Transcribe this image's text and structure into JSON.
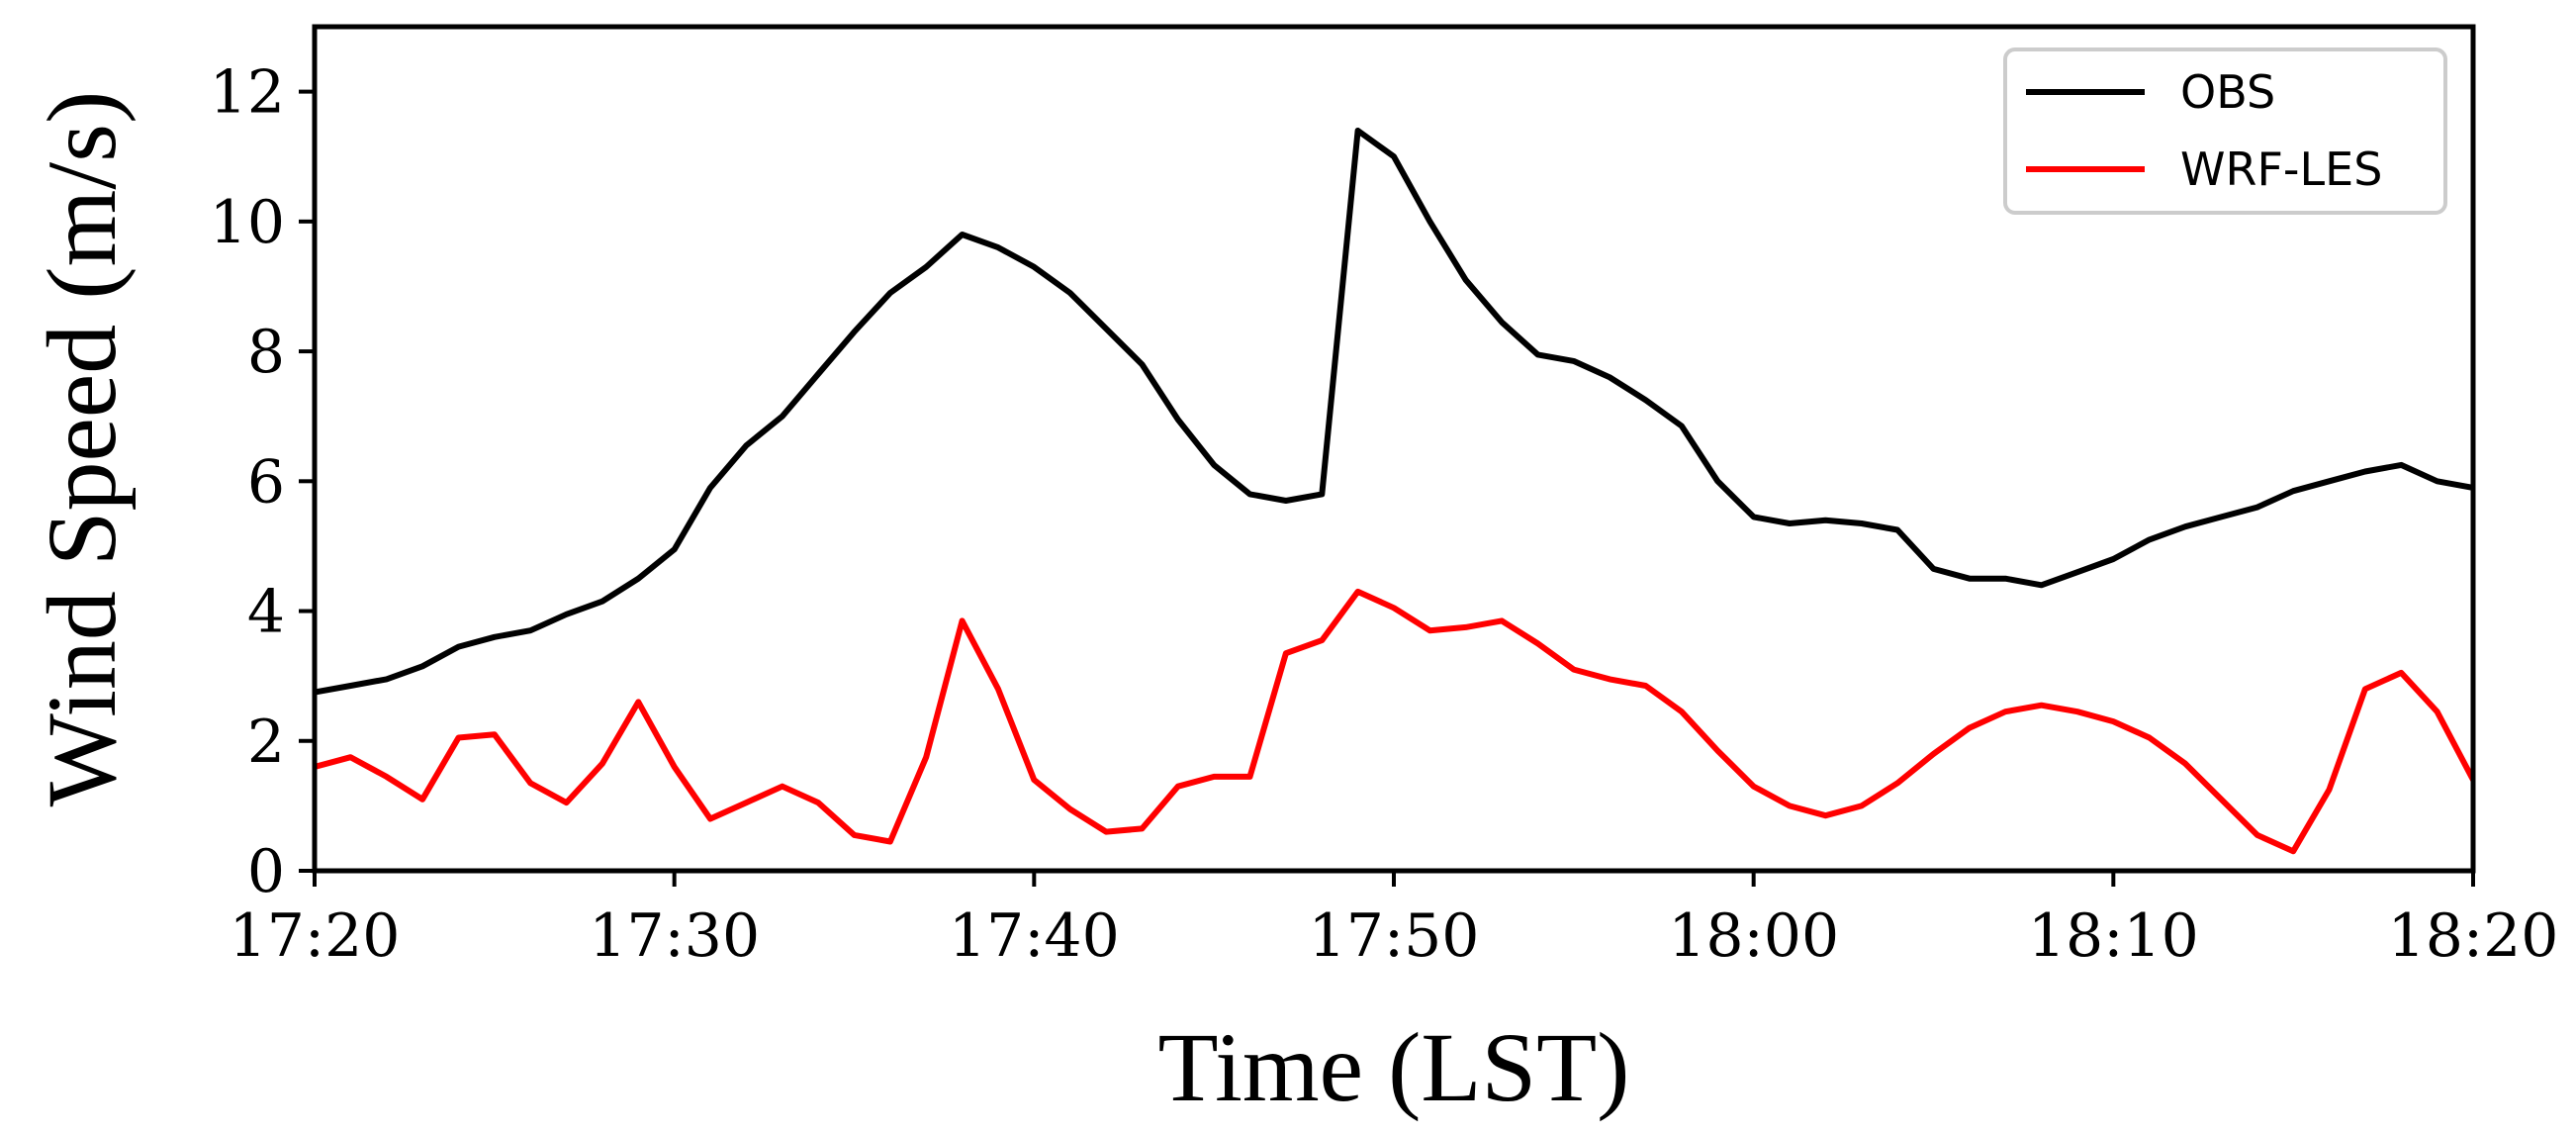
{
  "chart_data": {
    "type": "line",
    "title": "",
    "xlabel": "Time (LST)",
    "ylabel": "Wind Speed (m/s)",
    "x_unit": "minutes after 17:00 LST",
    "x_range": [
      20,
      80
    ],
    "ylim": [
      0,
      13
    ],
    "x_ticks": [
      {
        "value": 20,
        "label": "17:20"
      },
      {
        "value": 30,
        "label": "17:30"
      },
      {
        "value": 40,
        "label": "17:40"
      },
      {
        "value": 50,
        "label": "17:50"
      },
      {
        "value": 60,
        "label": "18:00"
      },
      {
        "value": 70,
        "label": "18:10"
      },
      {
        "value": 80,
        "label": "18:20"
      }
    ],
    "y_ticks": [
      0,
      2,
      4,
      6,
      8,
      10,
      12
    ],
    "grid": false,
    "legend_position": "top-right",
    "x": [
      20,
      21,
      22,
      23,
      24,
      25,
      26,
      27,
      28,
      29,
      30,
      31,
      32,
      33,
      34,
      35,
      36,
      37,
      38,
      39,
      40,
      41,
      42,
      43,
      44,
      45,
      46,
      47,
      48,
      49,
      50,
      51,
      52,
      53,
      54,
      55,
      56,
      57,
      58,
      59,
      60,
      61,
      62,
      63,
      64,
      65,
      66,
      67,
      68,
      69,
      70,
      71,
      72,
      73,
      74,
      75,
      76,
      77,
      78,
      79,
      80
    ],
    "series": [
      {
        "name": "OBS",
        "color": "#000000",
        "values": [
          2.75,
          2.85,
          2.95,
          3.15,
          3.45,
          3.6,
          3.7,
          3.95,
          4.15,
          4.5,
          4.95,
          5.9,
          6.55,
          7.0,
          7.65,
          8.3,
          8.9,
          9.3,
          9.8,
          9.6,
          9.3,
          8.9,
          8.35,
          7.8,
          6.95,
          6.25,
          5.8,
          5.7,
          5.8,
          11.4,
          11.0,
          10.0,
          9.1,
          8.45,
          7.95,
          7.85,
          7.6,
          7.25,
          6.85,
          6.0,
          5.45,
          5.35,
          5.4,
          5.35,
          5.25,
          4.65,
          4.5,
          4.5,
          4.4,
          4.6,
          4.8,
          5.1,
          5.3,
          5.45,
          5.6,
          5.85,
          6.0,
          6.15,
          6.25,
          6.0,
          5.9
        ]
      },
      {
        "name": "WRF-LES",
        "color": "#ff0000",
        "values": [
          1.6,
          1.75,
          1.45,
          1.1,
          2.05,
          2.1,
          1.35,
          1.05,
          1.65,
          2.6,
          1.6,
          0.8,
          1.05,
          1.3,
          1.05,
          0.55,
          0.45,
          1.75,
          3.85,
          2.8,
          1.4,
          0.95,
          0.6,
          0.65,
          1.3,
          1.45,
          1.45,
          3.35,
          3.55,
          4.3,
          4.05,
          3.7,
          3.75,
          3.85,
          3.5,
          3.1,
          2.95,
          2.85,
          2.45,
          1.85,
          1.3,
          1.0,
          0.85,
          1.0,
          1.35,
          1.8,
          2.2,
          2.45,
          2.55,
          2.45,
          2.3,
          2.05,
          1.65,
          1.1,
          0.55,
          0.3,
          1.25,
          2.8,
          3.05,
          2.45,
          1.4
        ]
      }
    ]
  }
}
